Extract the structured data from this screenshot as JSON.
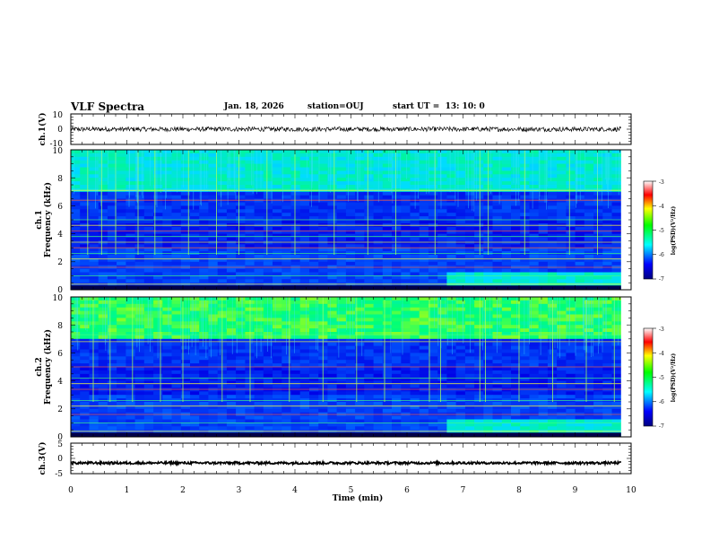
{
  "header": {
    "title": "VLF Spectra",
    "date": "Jan. 18, 2026",
    "station": "station=OUJ",
    "start": "start UT =  13: 10: 0"
  },
  "chart_data": [
    {
      "type": "line",
      "panel": "ch1-waveform",
      "ylabel": "ch.1(V)",
      "ylim": [
        -10,
        10
      ],
      "ytick_labels": [
        "10",
        "0",
        "-10"
      ],
      "xlim": [
        0,
        10
      ],
      "description_values": {
        "baseline_V": 0,
        "approx_amplitude_V": 1.5
      }
    },
    {
      "type": "heatmap",
      "panel": "ch1-spectrogram",
      "ylabel": "ch.1\nFrequency (kHz)",
      "ylabel_line1": "ch.1",
      "ylabel_line2": "Frequency (kHz)",
      "ylim": [
        0,
        10
      ],
      "ytick_labels": [
        "10",
        "8",
        "6",
        "4",
        "2",
        "0"
      ],
      "xlim": [
        0,
        10
      ],
      "colorbar": {
        "label": "log(PSD)(V²/Hz)",
        "range": [
          -7,
          -3
        ],
        "tick_labels": [
          "-3",
          "-4",
          "-5",
          "-6",
          "-7"
        ]
      },
      "strong_lines_kHz": [
        0.4,
        1.0,
        1.6,
        2.2,
        2.6,
        3.0,
        3.4,
        3.8,
        4.2,
        4.6,
        5.0,
        6.4,
        7.1
      ],
      "spike_times_min": [
        0.3,
        0.55,
        0.8,
        1.2,
        1.5,
        2.1,
        2.6,
        3.0,
        3.5,
        4.0,
        4.7,
        5.3,
        5.8,
        6.5,
        7.3,
        7.45,
        8.1,
        8.9,
        9.4
      ]
    },
    {
      "type": "heatmap",
      "panel": "ch2-spectrogram",
      "ylabel": "ch.2\nFrequency (kHz)",
      "ylabel_line1": "ch.2",
      "ylabel_line2": "Frequency (kHz)",
      "ylim": [
        0,
        10
      ],
      "ytick_labels": [
        "10",
        "8",
        "6",
        "4",
        "2",
        "0"
      ],
      "xlim": [
        0,
        10
      ],
      "colorbar": {
        "label": "log(PSD)(V²/Hz)",
        "range": [
          -7,
          -3
        ],
        "tick_labels": [
          "-3",
          "-4",
          "-5",
          "-6",
          "-7"
        ]
      },
      "strong_lines_kHz": [
        0.4,
        1.0,
        1.6,
        2.2,
        2.6,
        3.4,
        3.8,
        4.2,
        5.0,
        6.8,
        7.3
      ],
      "spike_times_min": [
        0.4,
        0.7,
        1.1,
        1.6,
        2.0,
        2.7,
        3.2,
        3.9,
        4.5,
        5.1,
        5.6,
        6.4,
        6.6,
        7.3,
        7.4,
        8.0,
        8.6,
        9.2,
        9.7
      ]
    },
    {
      "type": "line",
      "panel": "ch3-waveform",
      "ylabel": "ch.3(V)",
      "ylim": [
        -5,
        5
      ],
      "ytick_labels": [
        "5",
        "0",
        "-5"
      ],
      "xlim": [
        0,
        10
      ],
      "xlabel": "Time (min)",
      "xtick_labels": [
        "0",
        "1",
        "2",
        "3",
        "4",
        "5",
        "6",
        "7",
        "8",
        "9",
        "10"
      ],
      "description_values": {
        "baseline_V": -1.5,
        "approx_amplitude_V": 0.4
      }
    }
  ]
}
